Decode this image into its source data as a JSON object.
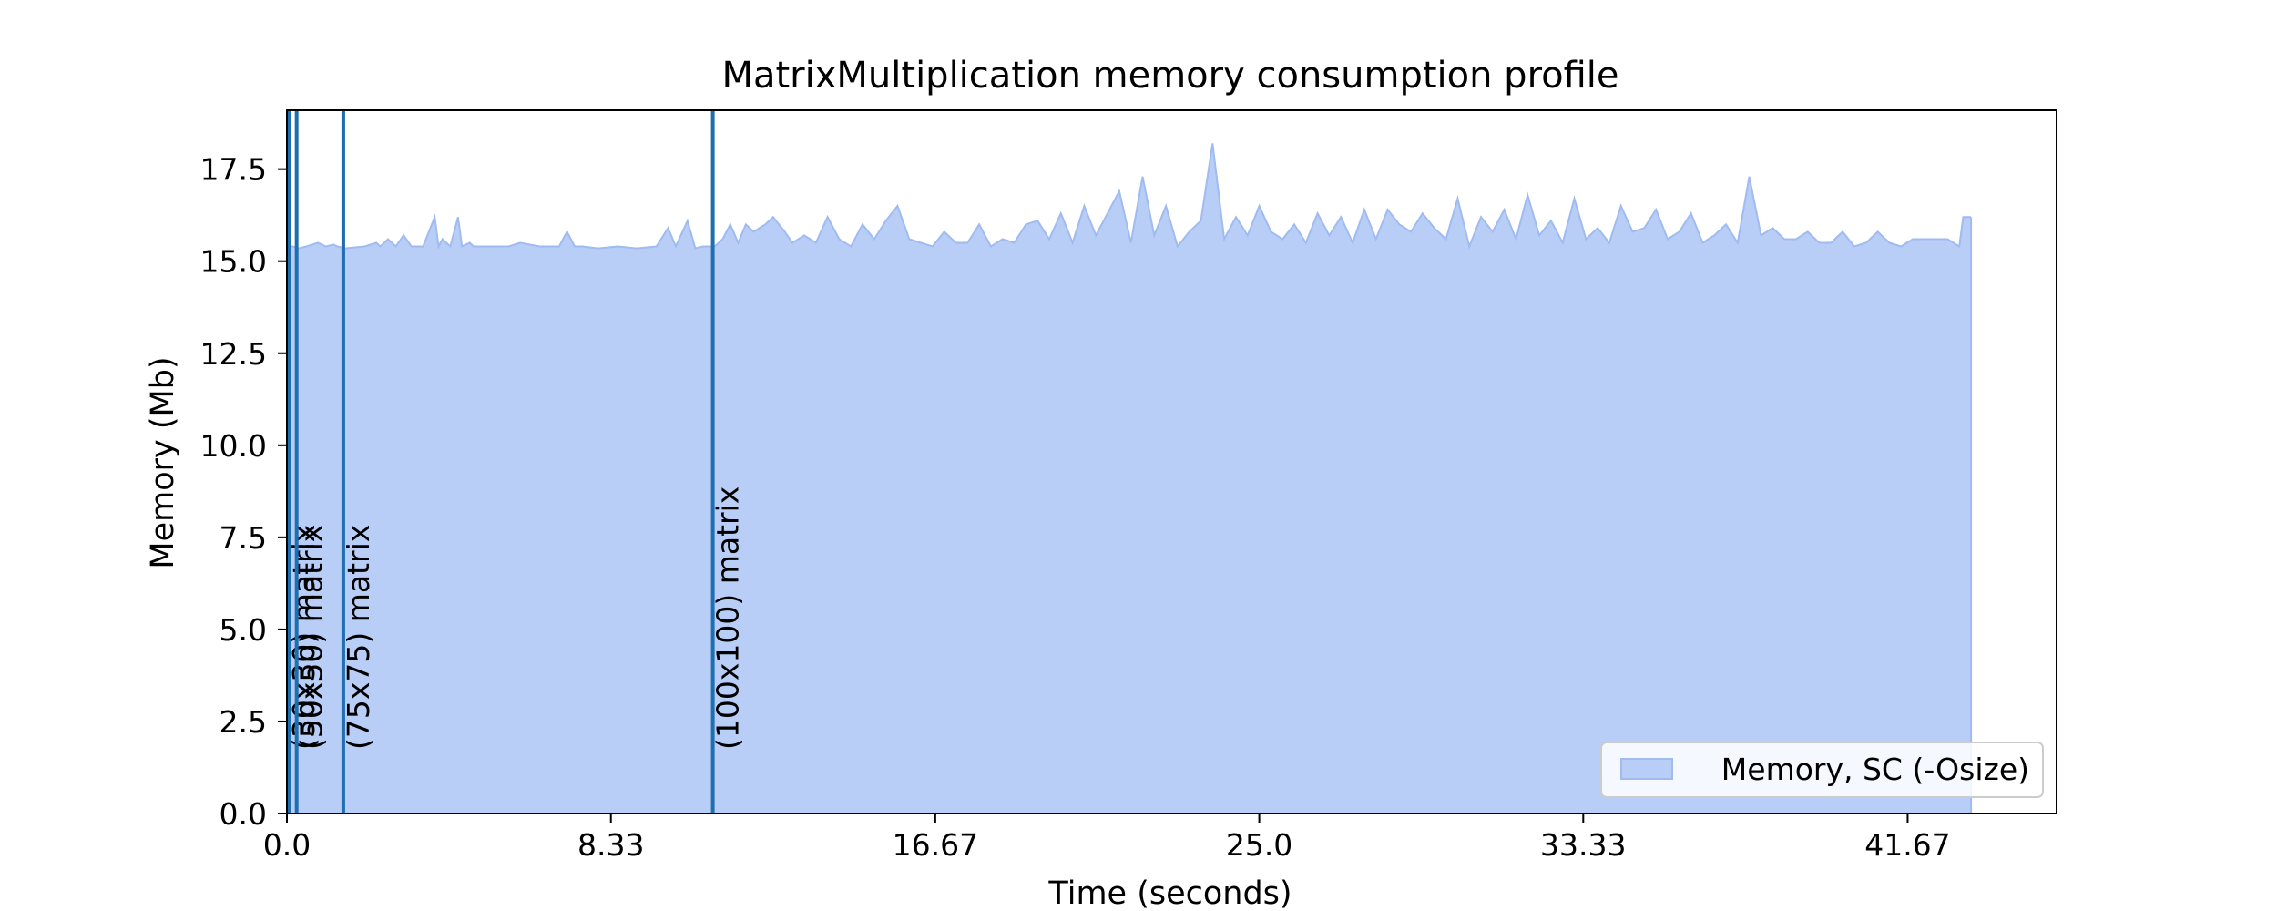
{
  "chart_data": {
    "type": "area",
    "title": "MatrixMultiplication memory consumption profile",
    "xlabel": "Time (seconds)",
    "ylabel": "Memory (Mb)",
    "xlim": [
      0,
      45.5
    ],
    "ylim": [
      0,
      19.1
    ],
    "xticks": [
      0.0,
      8.33,
      16.67,
      25.0,
      33.33,
      41.67
    ],
    "xtick_labels": [
      "0.0",
      "8.33",
      "16.67",
      "25.0",
      "33.33",
      "41.67"
    ],
    "yticks": [
      0.0,
      2.5,
      5.0,
      7.5,
      10.0,
      12.5,
      15.0,
      17.5
    ],
    "ytick_labels": [
      "0.0",
      "2.5",
      "5.0",
      "7.5",
      "10.0",
      "12.5",
      "15.0",
      "17.5"
    ],
    "grid": false,
    "legend_position": "lower-right",
    "series": [
      {
        "name": "Memory, SC (-Osize)",
        "color": "#6495ED",
        "x": [
          0.0,
          0.05,
          0.15,
          0.3,
          0.5,
          0.8,
          1.0,
          1.2,
          1.3,
          1.5,
          2.0,
          2.3,
          2.4,
          2.6,
          2.8,
          3.0,
          3.2,
          3.5,
          3.8,
          3.9,
          4.0,
          4.2,
          4.4,
          4.5,
          4.7,
          4.8,
          5.0,
          5.4,
          5.5,
          5.7,
          6.0,
          6.5,
          7.0,
          7.2,
          7.4,
          7.6,
          8.0,
          8.5,
          9.0,
          9.5,
          9.8,
          10.0,
          10.3,
          10.5,
          10.7,
          11.0,
          11.2,
          11.4,
          11.6,
          11.8,
          12.0,
          12.3,
          12.5,
          12.8,
          13.0,
          13.3,
          13.6,
          13.9,
          14.2,
          14.5,
          14.8,
          15.1,
          15.4,
          15.7,
          16.0,
          16.3,
          16.6,
          16.9,
          17.2,
          17.5,
          17.8,
          18.1,
          18.4,
          18.7,
          19.0,
          19.3,
          19.6,
          19.9,
          20.2,
          20.5,
          20.8,
          21.1,
          21.4,
          21.7,
          22.0,
          22.3,
          22.6,
          22.9,
          23.2,
          23.5,
          23.8,
          24.1,
          24.4,
          24.7,
          25.0,
          25.3,
          25.6,
          25.9,
          26.2,
          26.5,
          26.8,
          27.1,
          27.4,
          27.7,
          28.0,
          28.3,
          28.6,
          28.9,
          29.2,
          29.5,
          29.8,
          30.1,
          30.4,
          30.7,
          31.0,
          31.3,
          31.6,
          31.9,
          32.2,
          32.5,
          32.8,
          33.1,
          33.4,
          33.7,
          34.0,
          34.3,
          34.6,
          34.9,
          35.2,
          35.5,
          35.8,
          36.1,
          36.4,
          36.7,
          37.0,
          37.3,
          37.6,
          37.9,
          38.2,
          38.5,
          38.8,
          39.1,
          39.4,
          39.7,
          40.0,
          40.3,
          40.6,
          40.9,
          41.2,
          41.5,
          41.8,
          42.1,
          42.4,
          42.7,
          43.0,
          43.1,
          43.3
        ],
        "values": [
          0.0,
          15.4,
          15.4,
          15.35,
          15.4,
          15.5,
          15.4,
          15.45,
          15.4,
          15.35,
          15.4,
          15.5,
          15.4,
          15.6,
          15.4,
          15.7,
          15.4,
          15.4,
          16.2,
          15.4,
          15.6,
          15.4,
          16.2,
          15.4,
          15.5,
          15.4,
          15.4,
          15.4,
          15.4,
          15.4,
          15.5,
          15.4,
          15.4,
          15.8,
          15.4,
          15.4,
          15.35,
          15.4,
          15.35,
          15.4,
          15.9,
          15.4,
          16.1,
          15.35,
          15.4,
          15.4,
          15.6,
          16.0,
          15.5,
          16.0,
          15.8,
          16.0,
          16.2,
          15.8,
          15.5,
          15.7,
          15.5,
          16.2,
          15.6,
          15.4,
          16.0,
          15.6,
          16.1,
          16.5,
          15.6,
          15.5,
          15.4,
          15.8,
          15.5,
          15.5,
          16.0,
          15.4,
          15.6,
          15.5,
          16.0,
          16.1,
          15.6,
          16.3,
          15.5,
          16.5,
          15.7,
          16.3,
          16.9,
          15.5,
          17.3,
          15.7,
          16.5,
          15.4,
          15.8,
          16.1,
          18.2,
          15.6,
          16.2,
          15.7,
          16.5,
          15.8,
          15.6,
          16.0,
          15.5,
          16.3,
          15.7,
          16.2,
          15.5,
          16.4,
          15.6,
          16.4,
          16.0,
          15.8,
          16.3,
          15.9,
          15.6,
          16.7,
          15.4,
          16.2,
          15.8,
          16.4,
          15.6,
          16.8,
          15.7,
          16.1,
          15.5,
          16.7,
          15.6,
          15.9,
          15.5,
          16.5,
          15.8,
          15.9,
          16.4,
          15.6,
          15.8,
          16.3,
          15.5,
          15.7,
          16.0,
          15.5,
          17.3,
          15.7,
          15.9,
          15.6,
          15.6,
          15.8,
          15.5,
          15.5,
          15.8,
          15.4,
          15.5,
          15.8,
          15.5,
          15.4,
          15.6,
          15.6,
          15.6,
          15.6,
          15.4,
          16.2,
          16.2
        ]
      }
    ],
    "markers": [
      {
        "x": 0.05,
        "label": "(30x30) matrix"
      },
      {
        "x": 0.25,
        "label": "(50x50) matrix"
      },
      {
        "x": 1.45,
        "label": "(75x75) matrix"
      },
      {
        "x": 10.95,
        "label": "(100x100) matrix"
      }
    ],
    "colors": {
      "fill": "#b8cef7",
      "line": "#9fbbf0",
      "marker": "#1f6fb0",
      "axes": "#000000"
    }
  }
}
